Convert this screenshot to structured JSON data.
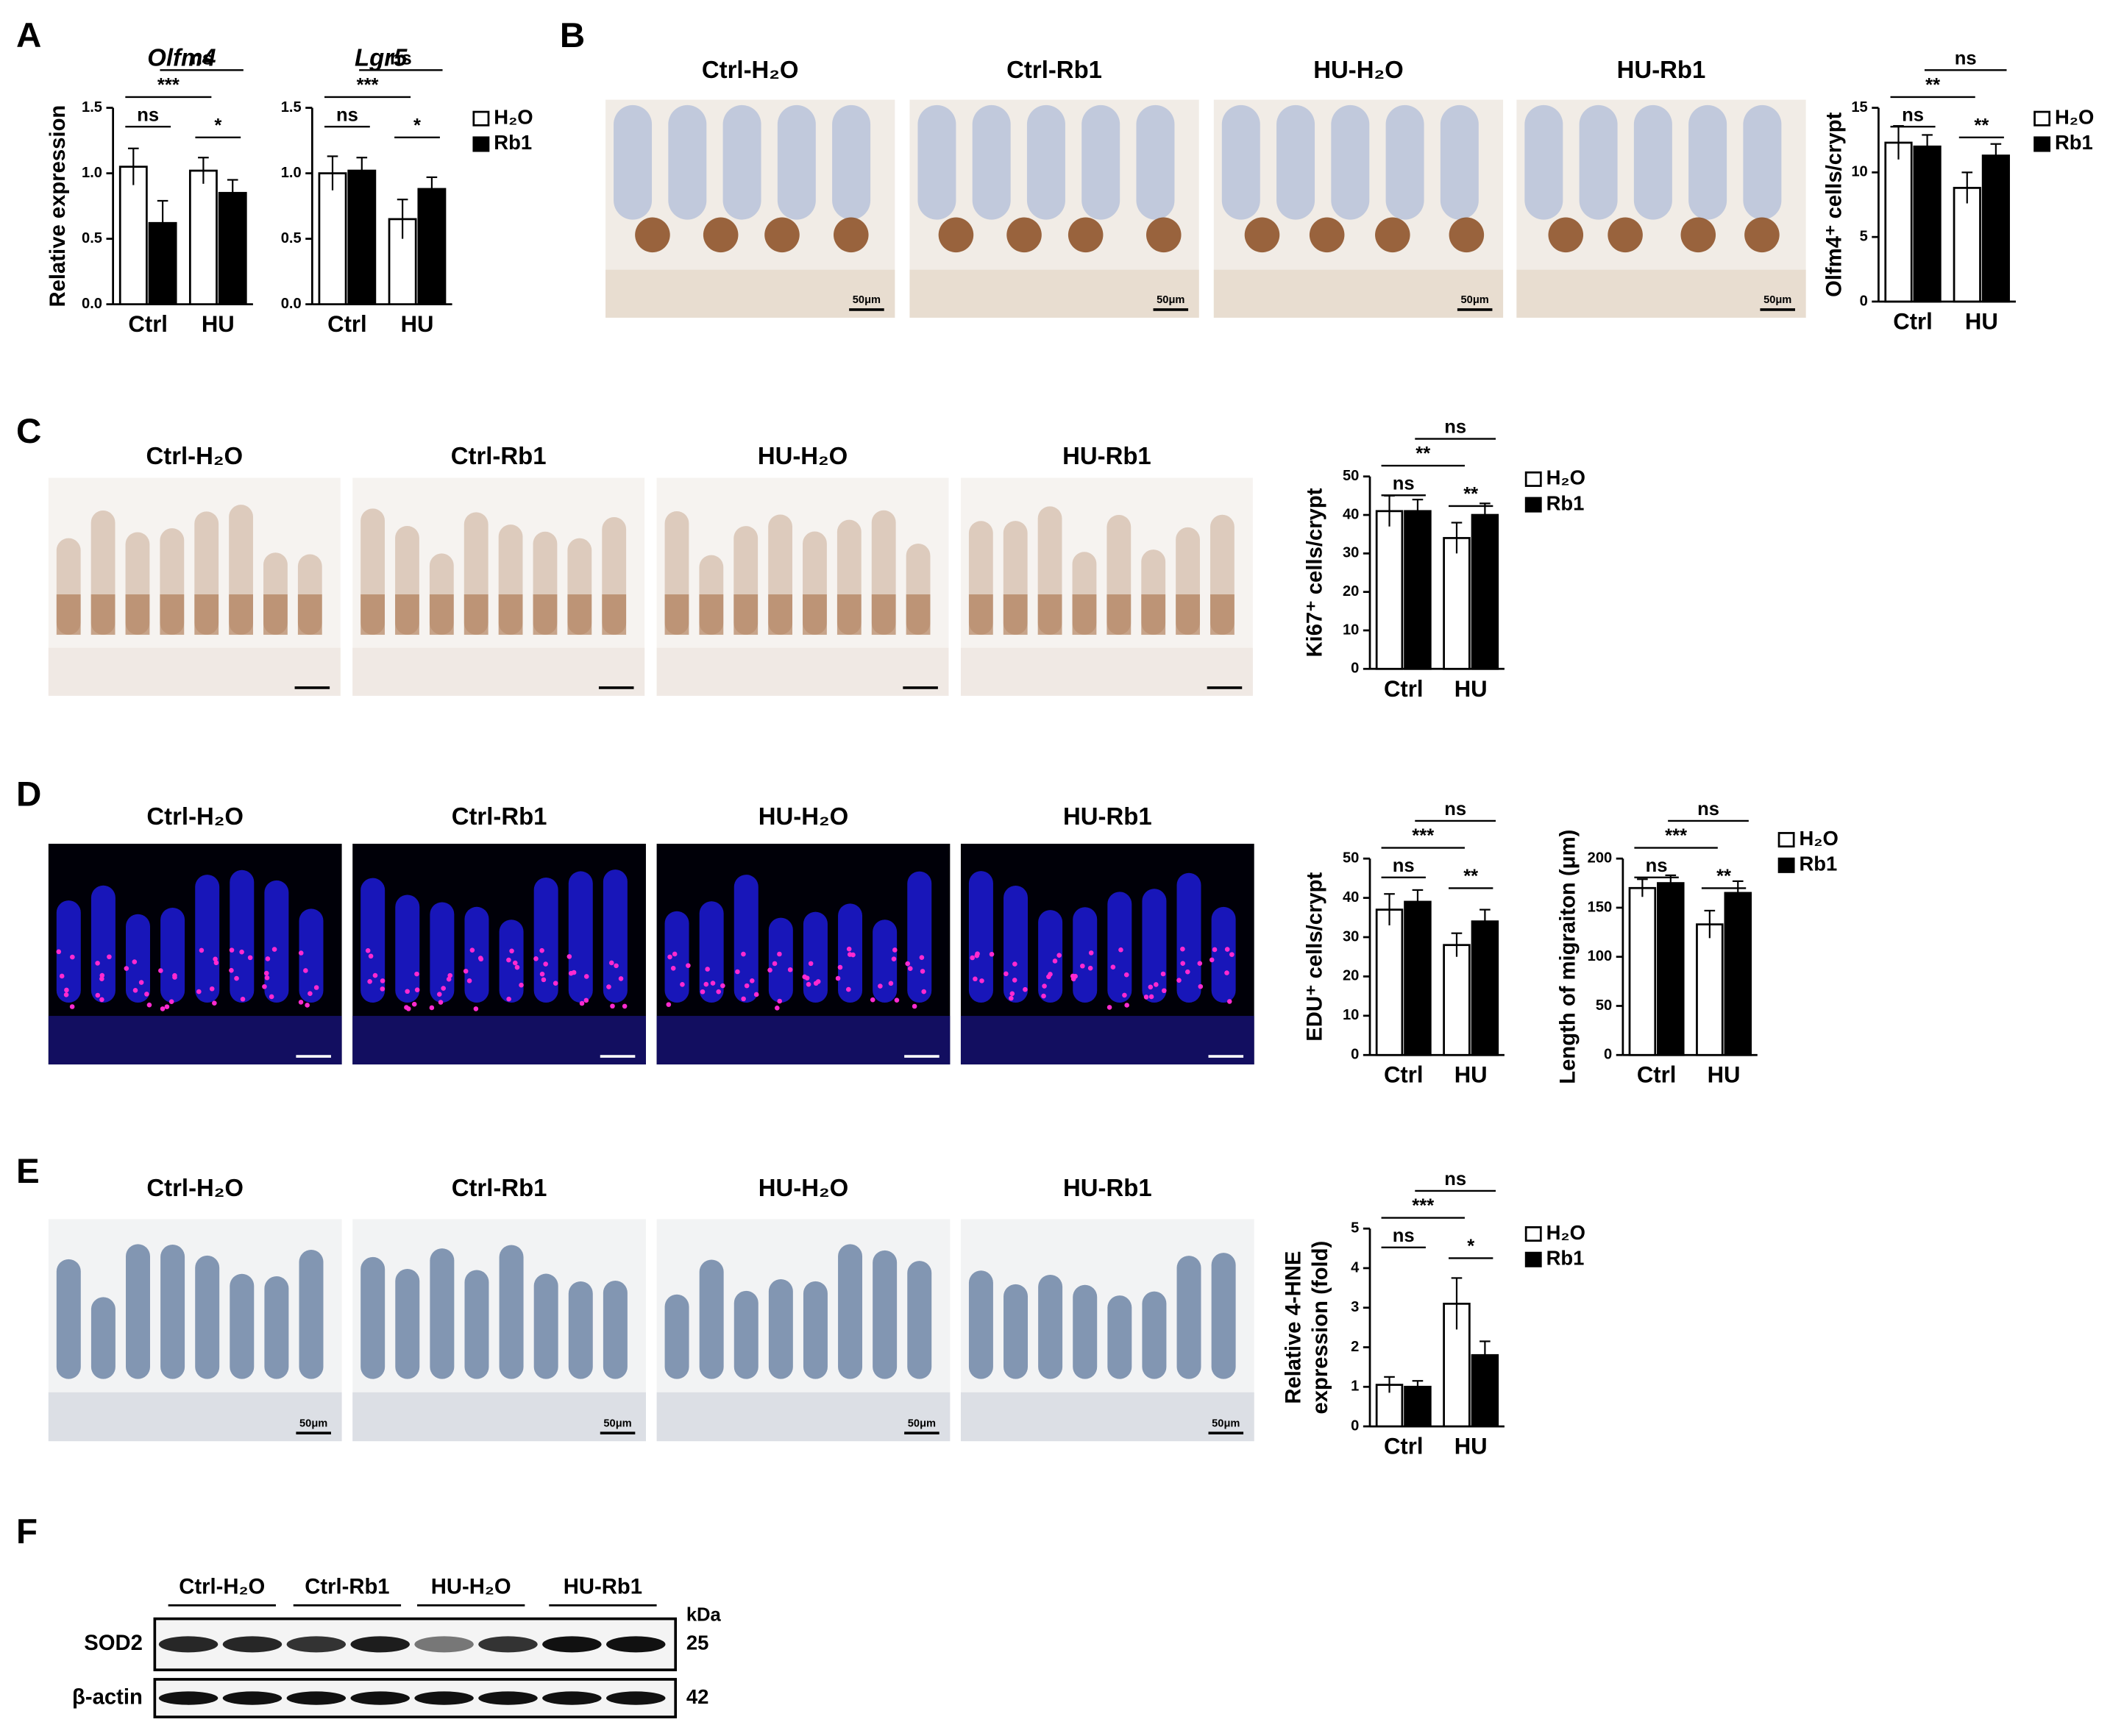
{
  "panel_letters": [
    "A",
    "B",
    "C",
    "D",
    "E",
    "F"
  ],
  "chart_data": [
    {
      "type": "bar",
      "title": "Olfm4",
      "ylabel": "Relative expression",
      "categories": [
        "Ctrl",
        "HU"
      ],
      "series": [
        {
          "color": "#ffffff",
          "values": [
            1.05,
            1.02
          ],
          "errors": [
            0.14,
            0.1
          ]
        },
        {
          "color": "#000000",
          "values": [
            0.62,
            0.85
          ],
          "errors": [
            0.17,
            0.1
          ]
        }
      ],
      "ylim": [
        0,
        1.5
      ],
      "yticks": [
        {
          "value": 0,
          "label": "0.0"
        },
        0.5,
        {
          "value": 1,
          "label": "1.0"
        },
        {
          "value": 1.5,
          "label": "1.5"
        }
      ],
      "annotations": [
        "ns",
        "***",
        "ns",
        "*"
      ]
    },
    {
      "type": "bar",
      "title": "Lgr5",
      "categories": [
        "Ctrl",
        "HU"
      ],
      "legend": "right",
      "series": [
        {
          "name": "H₂O",
          "color": "#ffffff",
          "values": [
            1.0,
            0.65
          ],
          "errors": [
            0.13,
            0.15
          ]
        },
        {
          "name": "Rb1",
          "color": "#000000",
          "values": [
            1.02,
            0.88
          ],
          "errors": [
            0.1,
            0.09
          ]
        }
      ],
      "ylim": [
        0,
        1.5
      ],
      "yticks": [
        {
          "value": 0,
          "label": "0.0"
        },
        0.5,
        {
          "value": 1,
          "label": "1.0"
        },
        {
          "value": 1.5,
          "label": "1.5"
        }
      ],
      "annotations": [
        "ns",
        "***",
        "ns",
        "*"
      ]
    },
    {
      "type": "bar",
      "ylabel": "Olfm4⁺ cells/crypt",
      "categories": [
        "Ctrl",
        "HU"
      ],
      "legend": "right",
      "series": [
        {
          "name": "H₂O",
          "color": "#ffffff",
          "values": [
            12.3,
            8.8
          ],
          "errors": [
            1.3,
            1.2
          ]
        },
        {
          "name": "Rb1",
          "color": "#000000",
          "values": [
            12.0,
            11.3
          ],
          "errors": [
            0.9,
            0.9
          ]
        }
      ],
      "ylim": [
        0,
        15
      ],
      "yticks": [
        0,
        5,
        10,
        15
      ],
      "annotations": [
        "ns",
        "**",
        "ns",
        "**"
      ]
    },
    {
      "type": "bar",
      "ylabel": "Ki67⁺ cells/crypt",
      "categories": [
        "Ctrl",
        "HU"
      ],
      "legend": "right",
      "series": [
        {
          "name": "H₂O",
          "color": "#ffffff",
          "values": [
            41,
            34
          ],
          "errors": [
            4,
            4
          ]
        },
        {
          "name": "Rb1",
          "color": "#000000",
          "values": [
            41,
            40
          ],
          "errors": [
            3,
            3
          ]
        }
      ],
      "ylim": [
        0,
        50
      ],
      "yticks": [
        0,
        10,
        20,
        30,
        40,
        50
      ],
      "annotations": [
        "ns",
        "**",
        "ns",
        "**"
      ]
    },
    {
      "type": "bar",
      "ylabel": "EDU⁺ cells/crypt",
      "categories": [
        "Ctrl",
        "HU"
      ],
      "series": [
        {
          "color": "#ffffff",
          "values": [
            37,
            28
          ],
          "errors": [
            4,
            3
          ]
        },
        {
          "color": "#000000",
          "values": [
            39,
            34
          ],
          "errors": [
            3,
            3
          ]
        }
      ],
      "ylim": [
        0,
        50
      ],
      "yticks": [
        0,
        10,
        20,
        30,
        40,
        50
      ],
      "annotations": [
        "ns",
        "***",
        "ns",
        "**"
      ]
    },
    {
      "type": "bar",
      "ylabel": "Length of migraiton (μm)",
      "categories": [
        "Ctrl",
        "HU"
      ],
      "legend": "right",
      "series": [
        {
          "name": "H₂O",
          "color": "#ffffff",
          "values": [
            170,
            133
          ],
          "errors": [
            9,
            14
          ]
        },
        {
          "name": "Rb1",
          "color": "#000000",
          "values": [
            175,
            165
          ],
          "errors": [
            8,
            12
          ]
        }
      ],
      "ylim": [
        0,
        200
      ],
      "yticks": [
        0,
        50,
        100,
        150,
        200
      ],
      "annotations": [
        "ns",
        "***",
        "ns",
        "**"
      ]
    },
    {
      "type": "bar",
      "ylabel": [
        "Relative 4-HNE",
        "expression (fold)"
      ],
      "categories": [
        "Ctrl",
        "HU"
      ],
      "legend": "right",
      "series": [
        {
          "name": "H₂O",
          "color": "#ffffff",
          "values": [
            1.05,
            3.1
          ],
          "errors": [
            0.2,
            0.65
          ]
        },
        {
          "name": "Rb1",
          "color": "#000000",
          "values": [
            1.0,
            1.8
          ],
          "errors": [
            0.15,
            0.35
          ]
        }
      ],
      "ylim": [
        0,
        5
      ],
      "yticks": [
        0,
        1,
        2,
        3,
        4,
        5
      ],
      "annotations": [
        "ns",
        "***",
        "ns",
        "*"
      ]
    }
  ],
  "micrographs": {
    "B": {
      "labels": [
        "Ctrl-H₂O",
        "Ctrl-Rb1",
        "HU-H₂O",
        "HU-Rb1"
      ],
      "scale_bar": "50μm"
    },
    "C": {
      "labels": [
        "Ctrl-H₂O",
        "Ctrl-Rb1",
        "HU-H₂O",
        "HU-Rb1"
      ]
    },
    "D": {
      "labels": [
        "Ctrl-H₂O",
        "Ctrl-Rb1",
        "HU-H₂O",
        "HU-Rb1"
      ]
    },
    "E": {
      "labels": [
        "Ctrl-H₂O",
        "Ctrl-Rb1",
        "HU-H₂O",
        "HU-Rb1"
      ],
      "scale_bar": "50μm"
    }
  },
  "blot": {
    "lanes": [
      "Ctrl-H₂O",
      "Ctrl-Rb1",
      "HU-H₂O",
      "HU-Rb1"
    ],
    "unit": "kDa",
    "rows": [
      {
        "protein": "SOD2",
        "kda": "25"
      },
      {
        "protein": "β-actin",
        "kda": "42"
      }
    ]
  }
}
